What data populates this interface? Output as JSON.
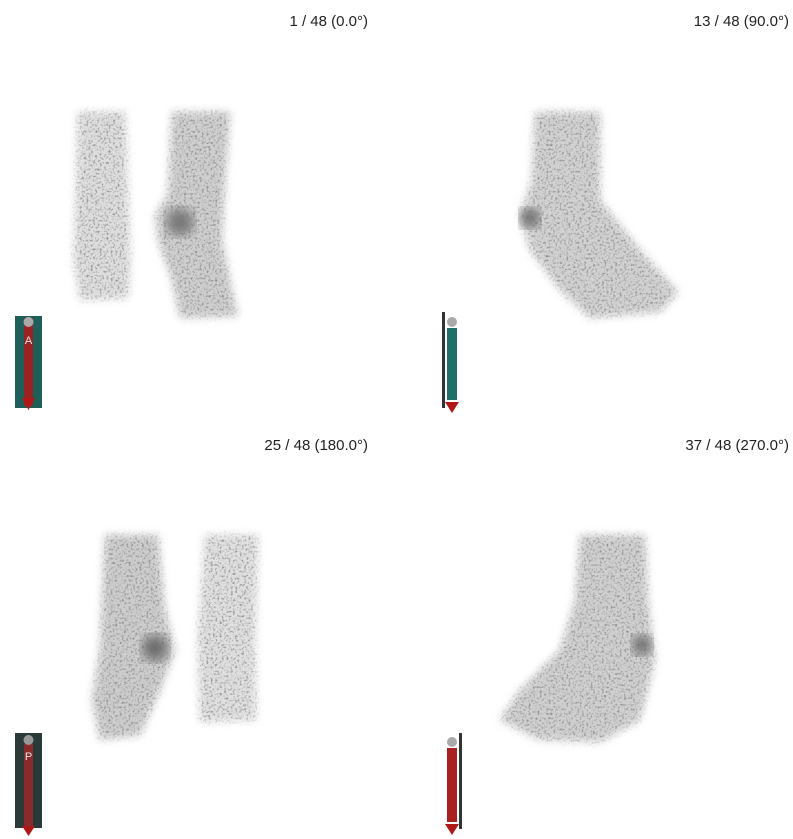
{
  "panels": [
    {
      "label": "1 / 48 (0.0°)",
      "orientation": "A"
    },
    {
      "label": "13 / 48 (90.0°)"
    },
    {
      "label": "25 / 48 (180.0°)",
      "orientation": "P"
    },
    {
      "label": "37 / 48 (270.0°)"
    }
  ]
}
